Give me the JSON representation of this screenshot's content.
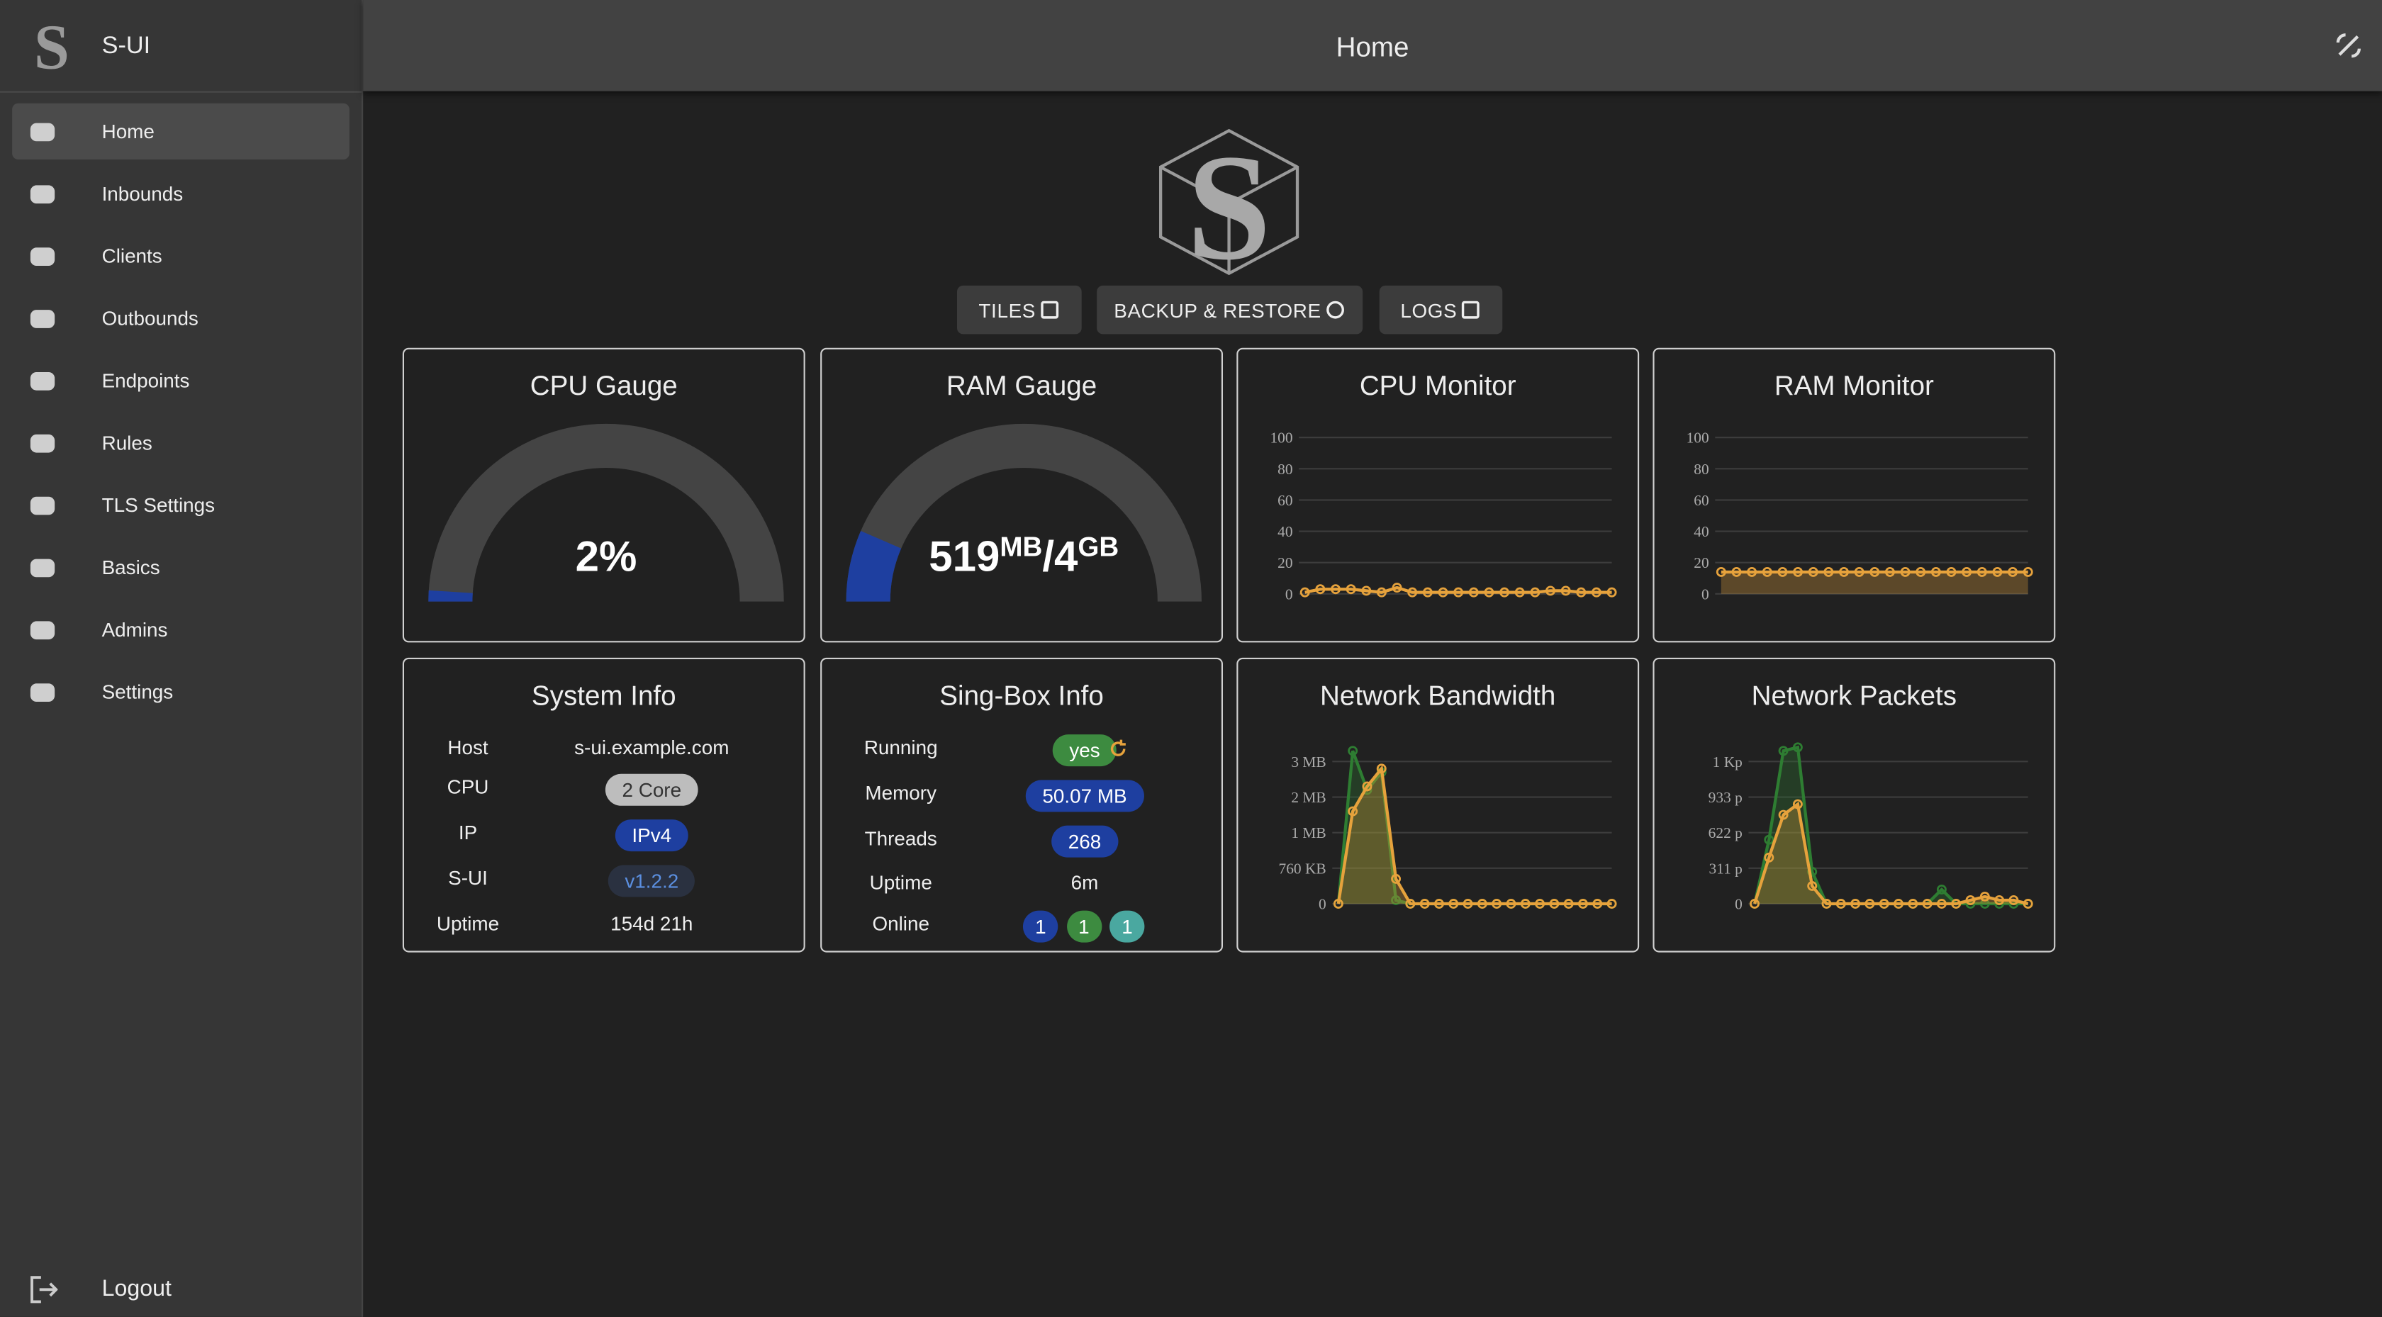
{
  "sidebar": {
    "brand": "S-UI",
    "nav": [
      "Home",
      "Inbounds",
      "Clients",
      "Outbounds",
      "Endpoints",
      "Rules",
      "TLS Settings",
      "Basics",
      "Admins",
      "Settings"
    ],
    "logout": "Logout"
  },
  "header": {
    "title": "Home"
  },
  "toolbar": {
    "buttons": [
      "TILES",
      "BACKUP & RESTORE",
      "LOGS"
    ]
  },
  "tiles": {
    "cpu_gauge": {
      "title": "CPU Gauge",
      "value": 2,
      "label": "2%",
      "ylim": [
        0,
        100
      ],
      "color": "#1e3fa0"
    },
    "ram_gauge": {
      "title": "RAM Gauge",
      "used": "519",
      "used_unit": "MB",
      "total": "/4",
      "total_unit": "GB",
      "value": 13,
      "ylim": [
        0,
        100
      ],
      "color": "#1e3fa0"
    },
    "cpu_monitor": {
      "type": "line",
      "title": "CPU Monitor",
      "ylim": [
        0,
        100
      ],
      "yticks": [
        0,
        20,
        40,
        60,
        80,
        100
      ],
      "series": [
        {
          "color": "#e6a23c",
          "values": [
            1,
            3,
            3,
            3,
            2,
            1,
            4,
            1,
            1,
            1,
            1,
            1,
            1,
            1,
            1,
            1,
            2,
            2,
            1,
            1,
            1
          ]
        }
      ]
    },
    "ram_monitor": {
      "type": "line",
      "title": "RAM Monitor",
      "ylim": [
        0,
        100
      ],
      "yticks": [
        0,
        20,
        40,
        60,
        80,
        100
      ],
      "fill": true,
      "series": [
        {
          "color": "#e6a23c",
          "values": [
            14,
            14,
            14,
            14,
            14,
            14,
            14,
            14,
            14,
            14,
            14,
            14,
            14,
            14,
            14,
            14,
            14,
            14,
            14,
            14,
            14
          ]
        }
      ]
    },
    "system_info": {
      "title": "System Info",
      "rows": [
        [
          "Host",
          "s-ui.example.com"
        ],
        [
          "CPU",
          "2 Core"
        ],
        [
          "IP",
          "IPv4"
        ],
        [
          "S-UI",
          "v1.2.2"
        ],
        [
          "Uptime",
          "154d 21h"
        ]
      ]
    },
    "singbox_info": {
      "title": "Sing-Box Info",
      "rows": [
        [
          "Running",
          "yes"
        ],
        [
          "Memory",
          "50.07 MB"
        ],
        [
          "Threads",
          "268"
        ],
        [
          "Uptime",
          "6m"
        ]
      ],
      "online_label": "Online",
      "online": [
        "1",
        "1",
        "1"
      ]
    },
    "network_bandwidth": {
      "type": "line",
      "title": "Network Bandwidth",
      "ylim": [
        0,
        4.4
      ],
      "fill": true,
      "yticks": [
        0,
        {
          "value": 1,
          "label": "760 KB"
        },
        {
          "value": 2,
          "label": "1 MB"
        },
        {
          "value": 3,
          "label": "2 MB"
        },
        {
          "value": 4,
          "label": "3 MB"
        }
      ],
      "series": [
        {
          "color": "#2e7d32",
          "values": [
            0,
            4.3,
            3.2,
            3.7,
            0.1,
            0,
            0,
            0,
            0,
            0,
            0,
            0,
            0,
            0,
            0,
            0,
            0,
            0,
            0,
            0
          ]
        },
        {
          "color": "#e6a23c",
          "values": [
            0,
            2.6,
            3.3,
            3.8,
            0.7,
            0,
            0,
            0,
            0,
            0,
            0,
            0,
            0,
            0,
            0,
            0,
            0,
            0,
            0,
            0
          ]
        }
      ]
    },
    "network_packets": {
      "type": "line",
      "title": "Network Packets",
      "ylim": [
        0,
        4.4
      ],
      "fill": true,
      "yticks": [
        0,
        {
          "value": 1,
          "label": "311 p"
        },
        {
          "value": 2,
          "label": "622 p"
        },
        {
          "value": 3,
          "label": "933 p"
        },
        {
          "value": 4,
          "label": "1 Kp"
        }
      ],
      "series": [
        {
          "color": "#2e7d32",
          "values": [
            0,
            1.8,
            4.3,
            4.4,
            0.9,
            0,
            0,
            0,
            0,
            0,
            0,
            0,
            0,
            0.4,
            0,
            0,
            0,
            0,
            0,
            0
          ]
        },
        {
          "color": "#e6a23c",
          "values": [
            0,
            1.3,
            2.5,
            2.8,
            0.5,
            0,
            0,
            0,
            0,
            0,
            0,
            0,
            0,
            0,
            0,
            0.1,
            0.2,
            0.1,
            0.1,
            0
          ]
        }
      ]
    }
  }
}
